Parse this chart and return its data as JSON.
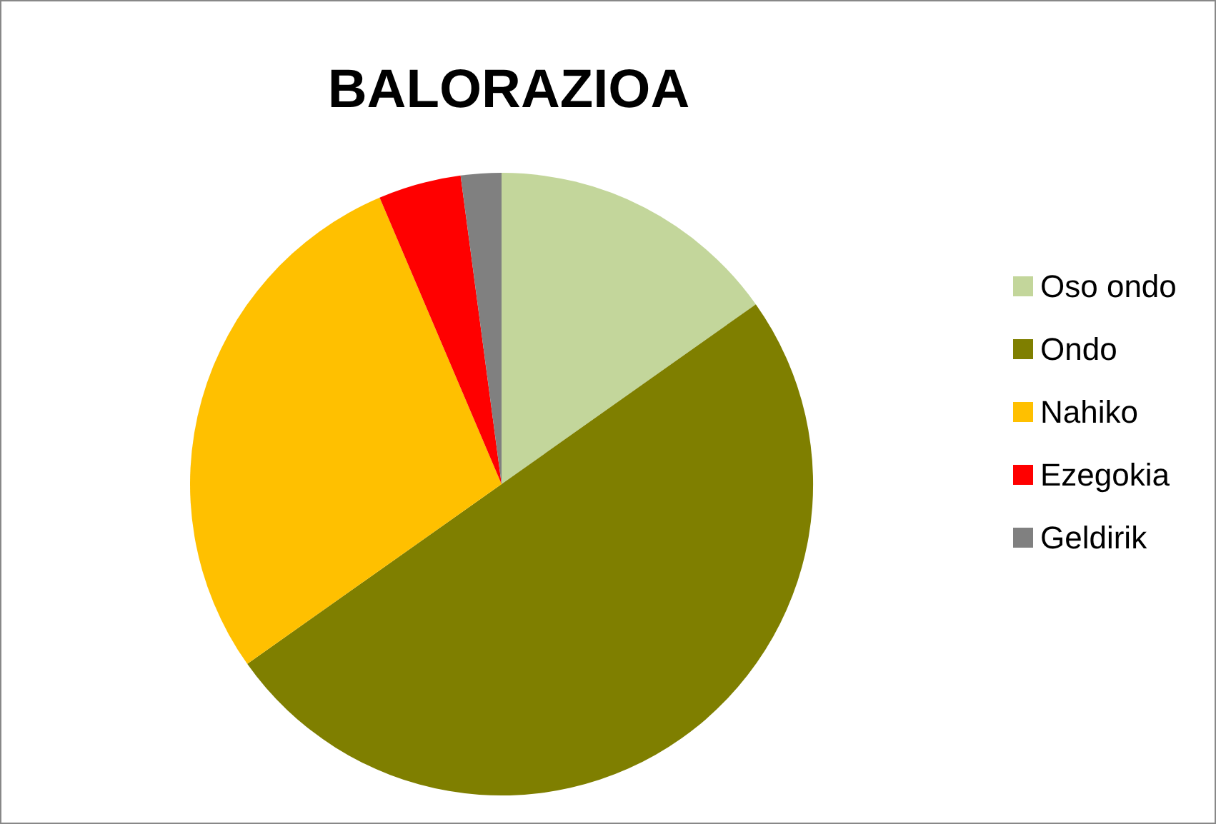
{
  "chart_data": {
    "type": "pie",
    "title": "BALORAZIOA",
    "categories": [
      "Oso ondo",
      "Ondo",
      "Nahiko",
      "Ezegokia",
      "Geldirik"
    ],
    "values": [
      15.2,
      50,
      28.4,
      4.3,
      2.1
    ],
    "colors": [
      "#c3d69b",
      "#7f7f00",
      "#ffc000",
      "#ff0000",
      "#808080"
    ],
    "legend": "right"
  }
}
